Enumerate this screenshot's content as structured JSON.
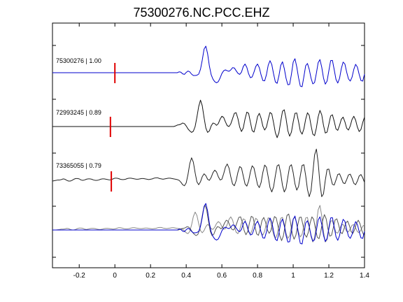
{
  "chart_data": {
    "type": "line",
    "title": "75300276.NC.PCC.EHZ",
    "xlabel": "",
    "ylabel": "",
    "xlim": [
      -0.35,
      1.4
    ],
    "grid": false,
    "x_ticks": [
      -0.2,
      0,
      0.2,
      0.4,
      0.6,
      0.8,
      1.0,
      1.2,
      1.4
    ],
    "x_tick_labels": [
      "-0.2",
      "0",
      "0.2",
      "0.4",
      "0.6",
      "0.8",
      "1",
      "1.2",
      "1.4"
    ],
    "traces": [
      {
        "label": "75300276 | 1.00",
        "color": "#0000cc",
        "pick_time": 0.0,
        "samples": [
          0.0,
          0.0,
          0.0,
          0.0,
          0.0,
          0.0,
          0.0,
          0.0,
          0.0,
          0.0,
          0.0,
          0.0,
          0.0,
          0.0,
          0.0,
          0.0,
          0.0,
          0.0,
          0.0,
          0.0,
          0.0,
          0.0,
          0.0,
          0.0,
          0.0,
          0.0,
          0.0,
          0.0,
          0.0,
          0.0,
          0.0,
          0.0,
          0.0,
          0.0,
          0.0,
          0.0,
          0.0,
          0.0,
          0.0,
          0.0,
          0.0,
          0.0,
          0.0,
          0.0,
          0.0,
          0.0,
          0.0,
          0.0,
          0.0,
          0.0,
          0.0,
          0.0,
          0.0,
          0.0,
          0.0,
          0.0,
          0.0,
          0.0,
          0.0,
          0.0,
          0.0,
          0.0,
          0.0,
          0.0,
          0.0,
          0.0,
          0.0,
          0.0,
          0.0,
          0.0,
          0.0,
          0.03,
          0.02,
          -0.04,
          -0.06,
          0.01,
          0.06,
          0.03,
          -0.05,
          -0.1,
          -0.1,
          -0.09,
          -0.05,
          0.12,
          0.45,
          0.84,
          0.95,
          0.68,
          0.24,
          -0.07,
          -0.23,
          -0.32,
          -0.36,
          -0.32,
          -0.19,
          -0.03,
          0.07,
          0.1,
          0.07,
          0.05,
          0.1,
          0.18,
          0.17,
          0.07,
          -0.02,
          -0.06,
          0.02,
          0.22,
          0.31,
          0.19,
          -0.04,
          -0.18,
          -0.15,
          0.02,
          0.22,
          0.31,
          0.18,
          -0.08,
          -0.28,
          -0.29,
          -0.07,
          0.27,
          0.43,
          0.29,
          -0.04,
          -0.33,
          -0.38,
          -0.11,
          0.26,
          0.39,
          0.15,
          -0.2,
          -0.43,
          -0.42,
          -0.06,
          0.38,
          0.5,
          0.21,
          -0.18,
          -0.48,
          -0.5,
          -0.14,
          0.25,
          0.33,
          0.12,
          -0.19,
          -0.4,
          -0.35,
          -0.02,
          0.36,
          0.47,
          0.2,
          -0.19,
          -0.41,
          -0.3,
          0.07,
          0.43,
          0.44,
          0.11,
          -0.24,
          -0.37,
          -0.2,
          0.15,
          0.38,
          0.31,
          0.02,
          -0.22,
          -0.3,
          -0.16,
          0.12,
          0.3,
          0.2,
          -0.06,
          -0.28,
          -0.3,
          -0.05,
          0.33,
          0.52,
          0.31,
          -0.1,
          -0.39,
          -0.38,
          -0.08,
          0.25,
          0.33,
          0.12,
          -0.16,
          -0.31,
          -0.23,
          0.04,
          0.28,
          0.28,
          0.06,
          -0.17,
          -0.23,
          -0.08,
          0.15,
          0.24,
          0.1,
          -0.1,
          -0.2,
          -0.12,
          0.07,
          0.17,
          0.12,
          -0.03,
          -0.15,
          -0.14,
          -0.02,
          0.12,
          0.13,
          0.03,
          -0.08,
          -0.1,
          -0.03,
          0.06
        ]
      },
      {
        "label": "72993245 | 0.89",
        "color": "#111111",
        "pick_time": -0.025,
        "samples": [
          0.0,
          0.0,
          0.0,
          0.0,
          0.0,
          0.0,
          0.0,
          0.0,
          0.0,
          0.0,
          0.0,
          0.0,
          0.0,
          0.0,
          0.0,
          0.0,
          0.0,
          0.0,
          0.0,
          0.0,
          0.0,
          0.0,
          0.0,
          0.0,
          0.0,
          0.0,
          0.0,
          0.0,
          0.0,
          0.0,
          0.0,
          0.0,
          0.0,
          0.0,
          0.0,
          0.0,
          0.0,
          0.0,
          0.0,
          0.0,
          0.0,
          0.0,
          0.0,
          0.0,
          0.0,
          0.0,
          0.0,
          0.0,
          0.0,
          0.0,
          0.0,
          0.0,
          0.0,
          0.0,
          0.0,
          0.0,
          0.0,
          0.0,
          0.0,
          0.0,
          0.0,
          0.0,
          0.0,
          0.0,
          0.0,
          0.0,
          0.0,
          0.0,
          0.0,
          0.02,
          0.05,
          0.06,
          0.08,
          0.12,
          0.1,
          0.02,
          -0.08,
          -0.15,
          -0.2,
          -0.16,
          0.0,
          0.32,
          0.68,
          0.9,
          0.71,
          0.31,
          -0.05,
          -0.2,
          -0.15,
          0.02,
          0.12,
          0.1,
          0.04,
          0.1,
          0.25,
          0.35,
          0.31,
          0.16,
          0.03,
          0.0,
          0.09,
          0.27,
          0.45,
          0.47,
          0.27,
          -0.02,
          -0.17,
          -0.05,
          0.26,
          0.49,
          0.45,
          0.15,
          -0.14,
          -0.19,
          0.04,
          0.34,
          0.45,
          0.28,
          0.01,
          -0.12,
          -0.02,
          0.25,
          0.48,
          0.43,
          0.13,
          -0.21,
          -0.38,
          -0.21,
          0.17,
          0.52,
          0.57,
          0.27,
          -0.14,
          -0.33,
          -0.19,
          0.16,
          0.45,
          0.46,
          0.17,
          -0.16,
          -0.26,
          -0.08,
          0.25,
          0.47,
          0.38,
          0.04,
          -0.26,
          -0.31,
          -0.05,
          0.33,
          0.55,
          0.4,
          0.04,
          -0.22,
          -0.19,
          0.08,
          0.36,
          0.4,
          0.18,
          -0.08,
          -0.13,
          0.04,
          0.25,
          0.32,
          0.16,
          -0.06,
          -0.12,
          0.02,
          0.24,
          0.35,
          0.22,
          -0.02,
          -0.17,
          -0.1,
          0.14,
          0.32,
          0.28,
          0.07,
          -0.12,
          -0.13,
          0.03,
          0.2,
          0.24,
          0.1,
          -0.07,
          -0.12,
          -0.03,
          0.12,
          0.2,
          0.14,
          0.0,
          -0.08,
          -0.04,
          0.06,
          0.12,
          0.1,
          0.02,
          -0.04,
          -0.03,
          0.03,
          0.06,
          0.05
        ]
      },
      {
        "label": "73365055 | 0.79",
        "color": "#222222",
        "pick_time": -0.02,
        "samples": [
          0.0,
          0.01,
          0.02,
          0.03,
          0.03,
          0.04,
          0.06,
          0.05,
          0.02,
          0.0,
          0.0,
          0.02,
          0.05,
          0.07,
          0.07,
          0.06,
          0.03,
          0.02,
          0.03,
          0.05,
          0.06,
          0.06,
          0.05,
          0.03,
          0.02,
          0.02,
          0.03,
          0.05,
          0.06,
          0.06,
          0.05,
          0.04,
          0.03,
          0.04,
          0.06,
          0.08,
          0.08,
          0.07,
          0.05,
          0.04,
          0.04,
          0.05,
          0.07,
          0.08,
          0.08,
          0.07,
          0.06,
          0.05,
          0.05,
          0.06,
          0.07,
          0.07,
          0.06,
          0.05,
          0.04,
          0.05,
          0.06,
          0.08,
          0.09,
          0.09,
          0.07,
          0.06,
          0.05,
          0.06,
          0.07,
          0.08,
          0.08,
          0.07,
          0.06,
          0.05,
          0.04,
          0.02,
          -0.03,
          -0.1,
          -0.13,
          -0.05,
          0.18,
          0.48,
          0.64,
          0.52,
          0.23,
          -0.02,
          -0.1,
          -0.02,
          0.12,
          0.2,
          0.15,
          0.05,
          0.02,
          0.1,
          0.23,
          0.3,
          0.25,
          0.12,
          0.03,
          0.05,
          0.2,
          0.38,
          0.47,
          0.36,
          0.12,
          -0.08,
          -0.13,
          0.01,
          0.24,
          0.4,
          0.36,
          0.14,
          -0.08,
          -0.14,
          0.0,
          0.25,
          0.42,
          0.36,
          0.13,
          -0.1,
          -0.18,
          -0.04,
          0.24,
          0.44,
          0.38,
          0.11,
          -0.18,
          -0.3,
          -0.16,
          0.15,
          0.42,
          0.45,
          0.21,
          -0.12,
          -0.3,
          -0.2,
          0.11,
          0.4,
          0.45,
          0.23,
          -0.08,
          -0.25,
          -0.15,
          0.15,
          0.43,
          0.45,
          0.15,
          -0.23,
          -0.43,
          -0.27,
          0.22,
          0.72,
          0.88,
          0.51,
          -0.07,
          -0.43,
          -0.35,
          0.02,
          0.32,
          0.33,
          0.11,
          -0.09,
          -0.11,
          0.03,
          0.18,
          0.2,
          0.08,
          -0.05,
          -0.07,
          0.04,
          0.17,
          0.19,
          0.08,
          -0.06,
          -0.1,
          0.0,
          0.14,
          0.18,
          0.09,
          -0.04,
          -0.09,
          -0.02,
          0.1,
          0.16,
          0.1,
          -0.02,
          -0.08,
          -0.04,
          0.06,
          0.12,
          0.09,
          0.0,
          -0.06,
          -0.04,
          0.04,
          0.08,
          0.06,
          0.0,
          -0.03,
          -0.02,
          0.02,
          0.05,
          0.04,
          0.01,
          -0.01,
          0.0
        ]
      },
      {
        "label": "",
        "color": "overlay",
        "pick_time": null,
        "samples": []
      }
    ],
    "t0": -0.35,
    "dt": 0.01
  }
}
